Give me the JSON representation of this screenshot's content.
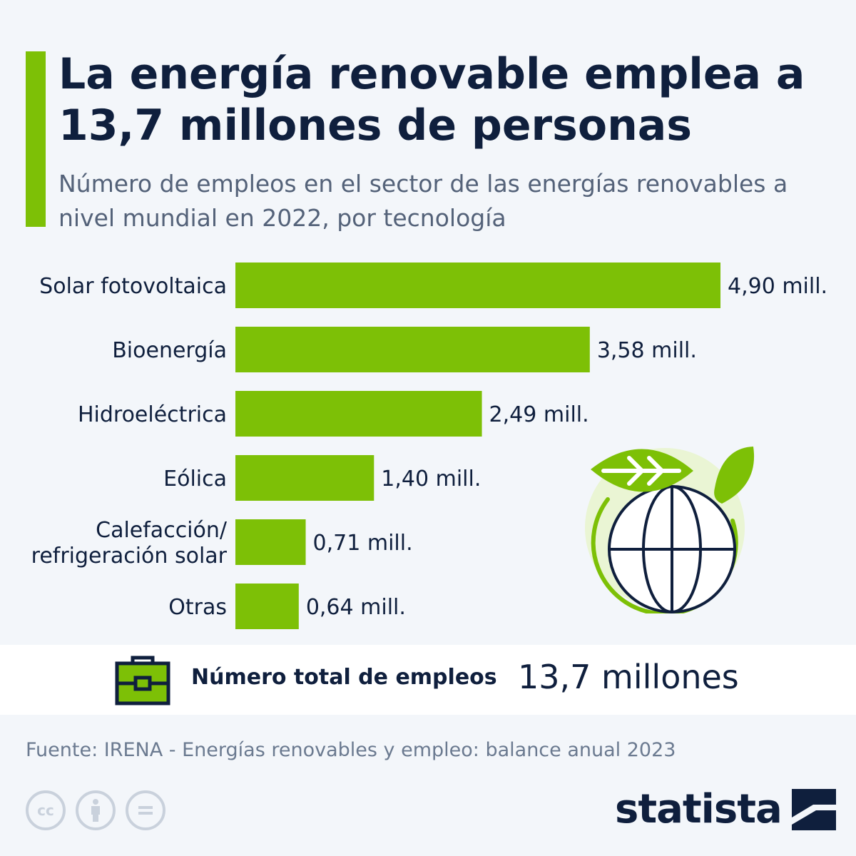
{
  "header": {
    "title": "La energía renovable emplea a 13,7 millones de personas",
    "subtitle": "Número de empleos en el sector de las energías renovables a nivel mundial en 2022, por tecnología"
  },
  "colors": {
    "accent": "#7dc006",
    "text": "#0f1f3d",
    "subtitle": "#546279",
    "background": "#f3f6fa"
  },
  "chart_data": {
    "type": "bar",
    "orientation": "horizontal",
    "categories": [
      [
        "Solar fotovoltaica"
      ],
      [
        "Bioenergía"
      ],
      [
        "Hidroeléctrica"
      ],
      [
        "Eólica"
      ],
      [
        "Calefacción/",
        "refrigeración solar"
      ],
      [
        "Otras"
      ]
    ],
    "values": [
      4.9,
      3.58,
      2.49,
      1.4,
      0.71,
      0.64
    ],
    "value_labels": [
      "4,90 mill.",
      "3,58 mill.",
      "2,49 mill.",
      "1,40 mill.",
      "0,71 mill.",
      "0,64 mill."
    ],
    "unit": "millones",
    "grid": false
  },
  "total": {
    "label": "Número total de empleos",
    "value": "13,7 millones",
    "icon": "briefcase-icon"
  },
  "footer": {
    "source": "Fuente: IRENA - Energías renovables y empleo: balance anual 2023",
    "brand": "statista",
    "license_icons": [
      "cc-icon",
      "attribution-icon",
      "no-derivatives-icon"
    ]
  },
  "illustration": {
    "icon": "globe-leaf-icon"
  }
}
